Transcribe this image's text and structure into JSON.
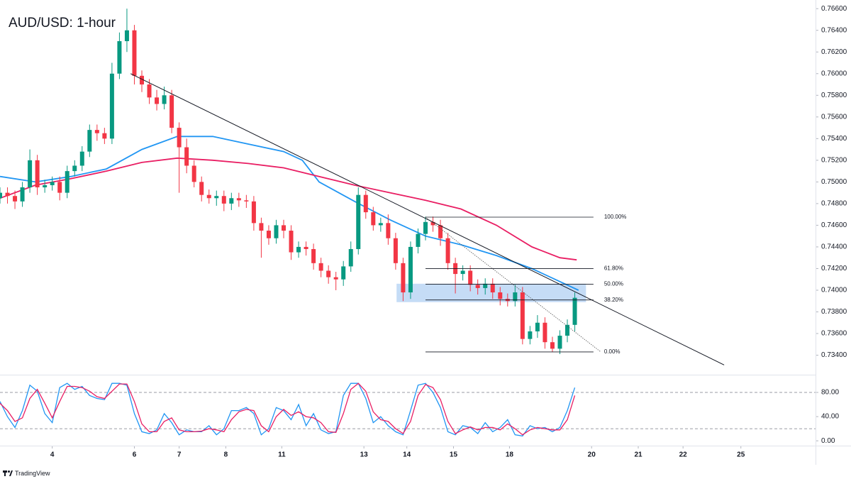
{
  "chart_data": [
    {
      "type": "candlestick",
      "title": "AUD/USD: 1-hour",
      "up_color": "#089981",
      "down_color": "#f23645",
      "x": [
        0,
        4,
        8,
        12,
        16,
        20,
        24,
        28,
        32,
        36,
        40,
        44,
        48,
        52,
        56,
        60,
        64,
        68,
        72,
        76,
        80,
        84,
        88,
        92,
        96,
        100,
        104,
        108,
        112,
        116,
        120,
        124,
        128,
        132,
        136,
        140,
        144,
        148,
        152,
        156,
        160,
        164,
        168,
        172,
        176,
        180,
        184,
        188,
        192,
        196,
        200,
        204,
        208,
        212,
        216,
        220,
        224,
        228,
        232,
        236,
        240,
        244,
        248,
        252,
        256,
        260,
        264,
        268,
        272,
        276,
        280,
        284,
        288,
        292,
        296,
        300,
        304,
        308
      ],
      "open": [
        0.7485,
        0.749,
        0.7487,
        0.7482,
        0.7495,
        0.752,
        0.7495,
        0.7497,
        0.75,
        0.749,
        0.751,
        0.7515,
        0.7528,
        0.7548,
        0.7545,
        0.754,
        0.76,
        0.763,
        0.764,
        0.7598,
        0.759,
        0.7578,
        0.7572,
        0.758,
        0.755,
        0.7532,
        0.7515,
        0.75,
        0.7488,
        0.7485,
        0.7487,
        0.748,
        0.7485,
        0.7483,
        0.7482,
        0.7462,
        0.7455,
        0.7448,
        0.746,
        0.7455,
        0.7435,
        0.744,
        0.7438,
        0.7425,
        0.7418,
        0.7412,
        0.741,
        0.7422,
        0.7438,
        0.7488,
        0.7472,
        0.746,
        0.7462,
        0.7448,
        0.7425,
        0.7398,
        0.744,
        0.7452,
        0.7463,
        0.746,
        0.7448,
        0.7425,
        0.7415,
        0.7418,
        0.7405,
        0.7402,
        0.7406,
        0.7398,
        0.7392,
        0.739,
        0.7398,
        0.7355,
        0.7362,
        0.737,
        0.7352,
        0.7346,
        0.7358,
        0.7368
      ],
      "high": [
        0.7495,
        0.7495,
        0.7492,
        0.75,
        0.753,
        0.7525,
        0.7502,
        0.7505,
        0.7505,
        0.7515,
        0.752,
        0.7533,
        0.7553,
        0.7553,
        0.755,
        0.761,
        0.7638,
        0.766,
        0.7645,
        0.7603,
        0.7595,
        0.7585,
        0.7588,
        0.7585,
        0.7555,
        0.754,
        0.752,
        0.7505,
        0.7493,
        0.7492,
        0.7492,
        0.749,
        0.749,
        0.7488,
        0.7487,
        0.7467,
        0.746,
        0.7465,
        0.7465,
        0.746,
        0.7445,
        0.7445,
        0.7443,
        0.743,
        0.7423,
        0.7417,
        0.7427,
        0.7445,
        0.7495,
        0.7492,
        0.7477,
        0.7467,
        0.747,
        0.7453,
        0.743,
        0.7445,
        0.7457,
        0.7468,
        0.7468,
        0.7465,
        0.7453,
        0.743,
        0.7423,
        0.7423,
        0.741,
        0.7411,
        0.7411,
        0.7403,
        0.7397,
        0.7405,
        0.7403,
        0.7367,
        0.7377,
        0.7375,
        0.7357,
        0.7363,
        0.7373,
        0.7398
      ],
      "low": [
        0.748,
        0.748,
        0.7475,
        0.7477,
        0.749,
        0.7488,
        0.749,
        0.7492,
        0.7483,
        0.7485,
        0.7505,
        0.751,
        0.7523,
        0.7538,
        0.7535,
        0.7535,
        0.7595,
        0.762,
        0.759,
        0.7583,
        0.7572,
        0.7566,
        0.7567,
        0.7545,
        0.749,
        0.7508,
        0.7495,
        0.7482,
        0.748,
        0.7478,
        0.7473,
        0.7474,
        0.7477,
        0.7476,
        0.7455,
        0.743,
        0.7442,
        0.7443,
        0.7448,
        0.7428,
        0.743,
        0.7432,
        0.7419,
        0.7412,
        0.7406,
        0.74,
        0.7404,
        0.7417,
        0.7433,
        0.7466,
        0.7455,
        0.7454,
        0.7442,
        0.7419,
        0.739,
        0.7392,
        0.7434,
        0.7446,
        0.7454,
        0.7441,
        0.7419,
        0.7397,
        0.7409,
        0.7399,
        0.7396,
        0.7396,
        0.7392,
        0.7386,
        0.7385,
        0.7385,
        0.735,
        0.735,
        0.7356,
        0.7346,
        0.7343,
        0.7341,
        0.7352,
        0.7362
      ],
      "close": [
        0.749,
        0.7487,
        0.7482,
        0.7495,
        0.752,
        0.7495,
        0.7497,
        0.75,
        0.749,
        0.751,
        0.7515,
        0.7528,
        0.7548,
        0.7545,
        0.754,
        0.76,
        0.763,
        0.764,
        0.7598,
        0.759,
        0.7578,
        0.7572,
        0.758,
        0.755,
        0.7532,
        0.7515,
        0.75,
        0.7488,
        0.7485,
        0.7487,
        0.748,
        0.7485,
        0.7483,
        0.7482,
        0.7462,
        0.7455,
        0.7448,
        0.746,
        0.7455,
        0.7435,
        0.744,
        0.7438,
        0.7425,
        0.7418,
        0.7412,
        0.741,
        0.7422,
        0.7438,
        0.7488,
        0.7472,
        0.746,
        0.7462,
        0.7448,
        0.7425,
        0.7398,
        0.744,
        0.7452,
        0.7463,
        0.746,
        0.7448,
        0.7425,
        0.7415,
        0.7418,
        0.7405,
        0.7402,
        0.7406,
        0.7398,
        0.7392,
        0.739,
        0.7398,
        0.7355,
        0.7362,
        0.737,
        0.7352,
        0.7346,
        0.7358,
        0.7368,
        0.7393
      ],
      "series": [
        {
          "color": "#2196f3",
          "x": [
            0,
            19,
            38,
            57,
            76,
            95,
            114,
            133,
            152,
            162,
            171,
            190,
            209,
            228,
            247,
            266,
            285,
            300,
            310
          ],
          "values": [
            0.7505,
            0.75,
            0.7505,
            0.7512,
            0.753,
            0.7542,
            0.7542,
            0.7535,
            0.7528,
            0.752,
            0.75,
            0.7482,
            0.7465,
            0.745,
            0.7442,
            0.7432,
            0.742,
            0.7408,
            0.74
          ]
        },
        {
          "color": "#e91e63",
          "x": [
            0,
            19,
            38,
            57,
            76,
            95,
            114,
            133,
            152,
            171,
            190,
            209,
            228,
            247,
            266,
            285,
            300,
            309
          ],
          "values": [
            0.7485,
            0.7497,
            0.7503,
            0.751,
            0.7518,
            0.7522,
            0.752,
            0.7517,
            0.7513,
            0.7505,
            0.7497,
            0.749,
            0.7483,
            0.7475,
            0.746,
            0.744,
            0.743,
            0.7428
          ]
        }
      ],
      "trendline": {
        "x": [
          70,
          388
        ],
        "y": [
          0.76,
          0.7331
        ],
        "color": "#131722"
      },
      "diagonal": {
        "x": [
          228,
          322
        ],
        "y": [
          0.74675,
          0.7343
        ],
        "color": "#555555"
      },
      "zone": {
        "x": [
          212.5,
          314
        ],
        "y": [
          0.7389,
          0.7406
        ],
        "color": "#9fc5f0"
      },
      "fib": {
        "x": [
          228,
          318
        ],
        "levels": [
          {
            "label": "100.00%",
            "price": 0.74675
          },
          {
            "label": "61.80%",
            "price": 0.742
          },
          {
            "label": "50.00%",
            "price": 0.74055
          },
          {
            "label": "38.20%",
            "price": 0.7391
          },
          {
            "label": "0.00%",
            "price": 0.7343
          }
        ]
      },
      "xlim": [
        0,
        437
      ],
      "ylim": [
        0.7322,
        0.7668
      ],
      "xticks": [
        {
          "value": 28,
          "label": "4"
        },
        {
          "value": 72,
          "label": "6"
        },
        {
          "value": 96,
          "label": "7"
        },
        {
          "value": 121,
          "label": "8"
        },
        {
          "value": 151,
          "label": "11"
        },
        {
          "value": 195,
          "label": "13"
        },
        {
          "value": 218,
          "label": "14"
        },
        {
          "value": 243,
          "label": "15"
        },
        {
          "value": 273,
          "label": "18"
        },
        {
          "value": 317,
          "label": "20"
        },
        {
          "value": 342,
          "label": "21"
        },
        {
          "value": 366,
          "label": "22"
        },
        {
          "value": 397,
          "label": "25"
        }
      ],
      "yticks": [
        {
          "value": 0.766,
          "label": "0.76600"
        },
        {
          "value": 0.764,
          "label": "0.76400"
        },
        {
          "value": 0.762,
          "label": "0.76200"
        },
        {
          "value": 0.76,
          "label": "0.76000"
        },
        {
          "value": 0.758,
          "label": "0.75800"
        },
        {
          "value": 0.756,
          "label": "0.75600"
        },
        {
          "value": 0.754,
          "label": "0.75400"
        },
        {
          "value": 0.752,
          "label": "0.75200"
        },
        {
          "value": 0.75,
          "label": "0.75000"
        },
        {
          "value": 0.748,
          "label": "0.74800"
        },
        {
          "value": 0.746,
          "label": "0.74600"
        },
        {
          "value": 0.744,
          "label": "0.74400"
        },
        {
          "value": 0.742,
          "label": "0.74200"
        },
        {
          "value": 0.74,
          "label": "0.74000"
        },
        {
          "value": 0.738,
          "label": "0.73800"
        },
        {
          "value": 0.736,
          "label": "0.73600"
        },
        {
          "value": 0.734,
          "label": "0.73400"
        }
      ]
    },
    {
      "type": "line",
      "xlim": [
        0,
        437
      ],
      "ylim": [
        -8,
        107
      ],
      "x": [
        0,
        4,
        8,
        12,
        16,
        20,
        24,
        28,
        32,
        36,
        40,
        44,
        48,
        52,
        56,
        60,
        64,
        68,
        72,
        76,
        80,
        84,
        88,
        92,
        96,
        100,
        104,
        108,
        112,
        116,
        120,
        124,
        128,
        132,
        136,
        140,
        144,
        148,
        152,
        156,
        160,
        164,
        168,
        172,
        176,
        180,
        184,
        188,
        192,
        196,
        200,
        204,
        208,
        212,
        216,
        220,
        224,
        228,
        232,
        236,
        240,
        244,
        248,
        252,
        256,
        260,
        264,
        268,
        272,
        276,
        280,
        284,
        288,
        292,
        296,
        300,
        304,
        308
      ],
      "series": [
        {
          "color": "#2196f3",
          "values": [
            65,
            40,
            22,
            50,
            92,
            82,
            45,
            30,
            88,
            95,
            85,
            90,
            75,
            70,
            68,
            95,
            95,
            92,
            45,
            15,
            12,
            18,
            45,
            30,
            10,
            18,
            15,
            15,
            25,
            10,
            20,
            50,
            50,
            55,
            45,
            10,
            20,
            55,
            50,
            35,
            60,
            25,
            45,
            18,
            12,
            15,
            75,
            95,
            95,
            70,
            30,
            40,
            25,
            15,
            10,
            50,
            92,
            95,
            80,
            55,
            15,
            10,
            25,
            22,
            12,
            30,
            15,
            22,
            35,
            10,
            8,
            25,
            20,
            22,
            15,
            22,
            50,
            88
          ]
        },
        {
          "color": "#e91e63",
          "values": [
            62,
            50,
            32,
            38,
            70,
            85,
            62,
            38,
            65,
            90,
            90,
            88,
            82,
            73,
            70,
            82,
            94,
            94,
            65,
            28,
            15,
            15,
            32,
            38,
            18,
            15,
            15,
            16,
            20,
            18,
            15,
            35,
            48,
            52,
            50,
            25,
            15,
            40,
            52,
            42,
            48,
            40,
            38,
            30,
            15,
            14,
            45,
            85,
            95,
            82,
            48,
            35,
            32,
            20,
            12,
            32,
            75,
            93,
            88,
            68,
            32,
            12,
            18,
            23,
            18,
            22,
            22,
            18,
            28,
            20,
            10,
            18,
            22,
            20,
            18,
            18,
            35,
            75
          ]
        }
      ],
      "levels": [
        80,
        20
      ],
      "yticks": [
        {
          "value": 80,
          "label": "80.00"
        },
        {
          "value": 40,
          "label": "40.00"
        },
        {
          "value": 0,
          "label": "0.00"
        }
      ]
    }
  ],
  "footer": {
    "brand": "TradingView"
  }
}
